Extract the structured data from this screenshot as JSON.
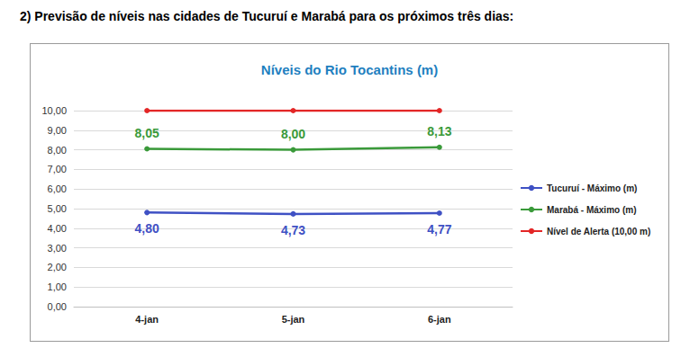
{
  "heading": "2) Previsão de níveis nas cidades de Tucuruí e Marabá para os próximos três dias:",
  "chart_data": {
    "type": "line",
    "title": "Níveis do Rio Tocantins (m)",
    "categories": [
      "4-jan",
      "5-jan",
      "6-jan"
    ],
    "series": [
      {
        "name": "Tucuruí - Máximo (m)",
        "color": "#3F51C4",
        "marker": "circle",
        "data_labels": true,
        "values": [
          4.8,
          4.73,
          4.77
        ],
        "value_labels": [
          "4,80",
          "4,73",
          "4,77"
        ]
      },
      {
        "name": "Marabá - Máximo (m)",
        "color": "#3A9A3A",
        "marker": "circle",
        "data_labels": true,
        "values": [
          8.05,
          8.0,
          8.13
        ],
        "value_labels": [
          "8,05",
          "8,00",
          "8,13"
        ]
      },
      {
        "name": "Nível de Alerta (10,00 m)",
        "color": "#E32626",
        "marker": "circle",
        "data_labels": false,
        "values": [
          10.0,
          10.0,
          10.0
        ]
      }
    ],
    "ylim": [
      0,
      10
    ],
    "yticks": [
      {
        "value": 0,
        "label": "0,00"
      },
      {
        "value": 1,
        "label": "1,00"
      },
      {
        "value": 2,
        "label": "2,00"
      },
      {
        "value": 3,
        "label": "3,00"
      },
      {
        "value": 4,
        "label": "4,00"
      },
      {
        "value": 5,
        "label": "5,00"
      },
      {
        "value": 6,
        "label": "6,00"
      },
      {
        "value": 7,
        "label": "7,00"
      },
      {
        "value": 8,
        "label": "8,00"
      },
      {
        "value": 9,
        "label": "9,00"
      },
      {
        "value": 10,
        "label": "10,00"
      }
    ],
    "grid": true,
    "legend": "right"
  }
}
